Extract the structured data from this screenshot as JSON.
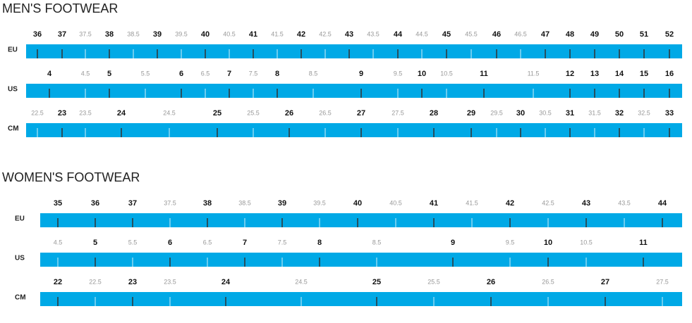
{
  "sections": [
    {
      "title": "MEN'S FOOTWEAR",
      "rows": [
        {
          "label": "EU",
          "sizes": [
            "36",
            "37",
            "37.5",
            "38",
            "38.5",
            "39",
            "39.5",
            "40",
            "40.5",
            "41",
            "41.5",
            "42",
            "42.5",
            "43",
            "43.5",
            "44",
            "44.5",
            "45",
            "45.5",
            "46",
            "46.5",
            "47",
            "48",
            "49",
            "50",
            "51",
            "52"
          ]
        },
        {
          "label": "US",
          "sizes": [
            "4",
            "4.5",
            "5",
            "5.5",
            "6",
            "6.5",
            "7",
            "7.5",
            "8",
            "8.5",
            "9",
            "9.5",
            "10",
            "10.5",
            "11",
            "11.5",
            "12",
            "13",
            "14",
            "15",
            "16"
          ]
        },
        {
          "label": "CM",
          "sizes": [
            "22.5",
            "23",
            "23.5",
            "24",
            "24.5",
            "25",
            "25.5",
            "26",
            "26.5",
            "27",
            "27.5",
            "28",
            "29",
            "29.5",
            "30",
            "30.5",
            "31",
            "31.5",
            "32",
            "32.5",
            "33"
          ]
        }
      ]
    },
    {
      "title": "WOMEN'S FOOTWEAR",
      "rows": [
        {
          "label": "EU",
          "sizes": [
            "35",
            "36",
            "37",
            "37.5",
            "38",
            "38.5",
            "39",
            "39.5",
            "40",
            "40.5",
            "41",
            "41.5",
            "42",
            "42.5",
            "43",
            "43.5",
            "44"
          ]
        },
        {
          "label": "US",
          "sizes": [
            "4.5",
            "5",
            "5.5",
            "6",
            "6.5",
            "7",
            "7.5",
            "8",
            "8.5",
            "9",
            "9.5",
            "10",
            "10.5",
            "11"
          ]
        },
        {
          "label": "CM",
          "sizes": [
            "22",
            "22.5",
            "23",
            "23.5",
            "24",
            "24.5",
            "25",
            "25.5",
            "26",
            "26.5",
            "27",
            "27.5"
          ]
        }
      ]
    }
  ]
}
